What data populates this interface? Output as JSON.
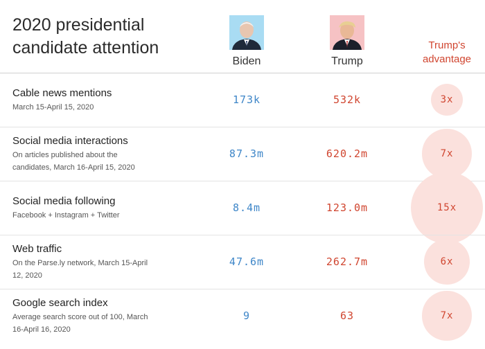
{
  "title": "2020 presidential candidate attention",
  "columns": {
    "biden": "Biden",
    "trump": "Trump",
    "advantage": "Trump's advantage"
  },
  "colors": {
    "biden": "#3e86c8",
    "trump": "#d0452f",
    "bubble": "#fbe1dd",
    "biden_photo_bg": "#a9dcf3",
    "trump_photo_bg": "#f6c2c4"
  },
  "chart_data": {
    "type": "table",
    "title": "2020 presidential candidate attention",
    "columns": [
      "Biden",
      "Trump",
      "Trump's advantage"
    ],
    "rows": [
      {
        "metric": "Cable news mentions",
        "note": "March 15-April 15, 2020",
        "biden": "173k",
        "trump": "532k",
        "advantage_label": "3x",
        "advantage": 3
      },
      {
        "metric": "Social media interactions",
        "note": "On articles published about the candidates, March 16-April 15, 2020",
        "biden": "87.3m",
        "trump": "620.2m",
        "advantage_label": "7x",
        "advantage": 7
      },
      {
        "metric": "Social media following",
        "note": "Facebook + Instagram + Twitter",
        "biden": "8.4m",
        "trump": "123.0m",
        "advantage_label": "15x",
        "advantage": 15
      },
      {
        "metric": "Web traffic",
        "note": "On the Parse.ly network, March 15-April 12, 2020",
        "biden": "47.6m",
        "trump": "262.7m",
        "advantage_label": "6x",
        "advantage": 6
      },
      {
        "metric": "Google search index",
        "note": "Average search score out of 100, March 16-April 16, 2020",
        "biden": "9",
        "trump": "63",
        "advantage_label": "7x",
        "advantage": 7
      }
    ]
  }
}
